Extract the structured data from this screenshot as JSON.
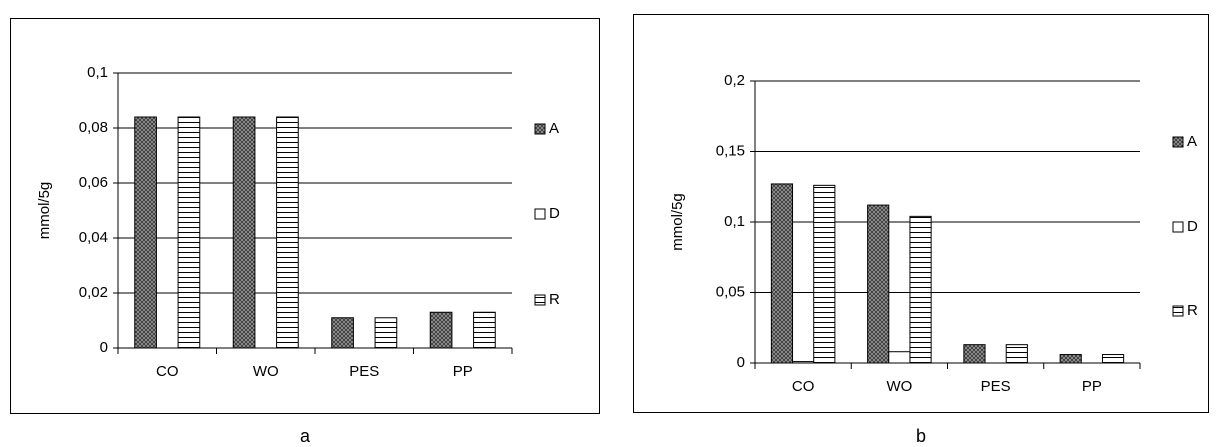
{
  "chart_data": [
    {
      "type": "bar",
      "caption": "a",
      "y_label": "mmol/5g",
      "categories": [
        "CO",
        "WO",
        "PES",
        "PP"
      ],
      "series": [
        {
          "name": "A",
          "pattern": "crosshatch",
          "values": [
            0.084,
            0.084,
            0.011,
            0.013
          ]
        },
        {
          "name": "D",
          "pattern": "none",
          "values": [
            0,
            0,
            0,
            0
          ]
        },
        {
          "name": "R",
          "pattern": "horizontal",
          "values": [
            0.084,
            0.084,
            0.011,
            0.013
          ]
        }
      ],
      "ylim": [
        0,
        0.1
      ],
      "yticks": [
        0,
        {
          "value": 0.02,
          "label": "0,02"
        },
        {
          "value": 0.04,
          "label": "0,04"
        },
        {
          "value": 0.06,
          "label": "0,06"
        },
        {
          "value": 0.08,
          "label": "0,08"
        },
        {
          "value": 0.1,
          "label": "0,1"
        }
      ],
      "grid": true,
      "legend": "right"
    },
    {
      "type": "bar",
      "caption": "b",
      "y_label": "mmol/5g",
      "categories": [
        "CO",
        "WO",
        "PES",
        "PP"
      ],
      "series": [
        {
          "name": "A",
          "pattern": "crosshatch",
          "values": [
            0.127,
            0.112,
            0.013,
            0.006
          ]
        },
        {
          "name": "D",
          "pattern": "none",
          "values": [
            0.001,
            0.008,
            0,
            0
          ]
        },
        {
          "name": "R",
          "pattern": "horizontal",
          "values": [
            0.126,
            0.104,
            0.013,
            0.006
          ]
        }
      ],
      "ylim": [
        0,
        0.2
      ],
      "yticks": [
        0,
        {
          "value": 0.05,
          "label": "0,05"
        },
        {
          "value": 0.1,
          "label": "0,1"
        },
        {
          "value": 0.15,
          "label": "0,15"
        },
        {
          "value": 0.2,
          "label": "0,2"
        }
      ],
      "grid": true,
      "legend": "right"
    }
  ]
}
